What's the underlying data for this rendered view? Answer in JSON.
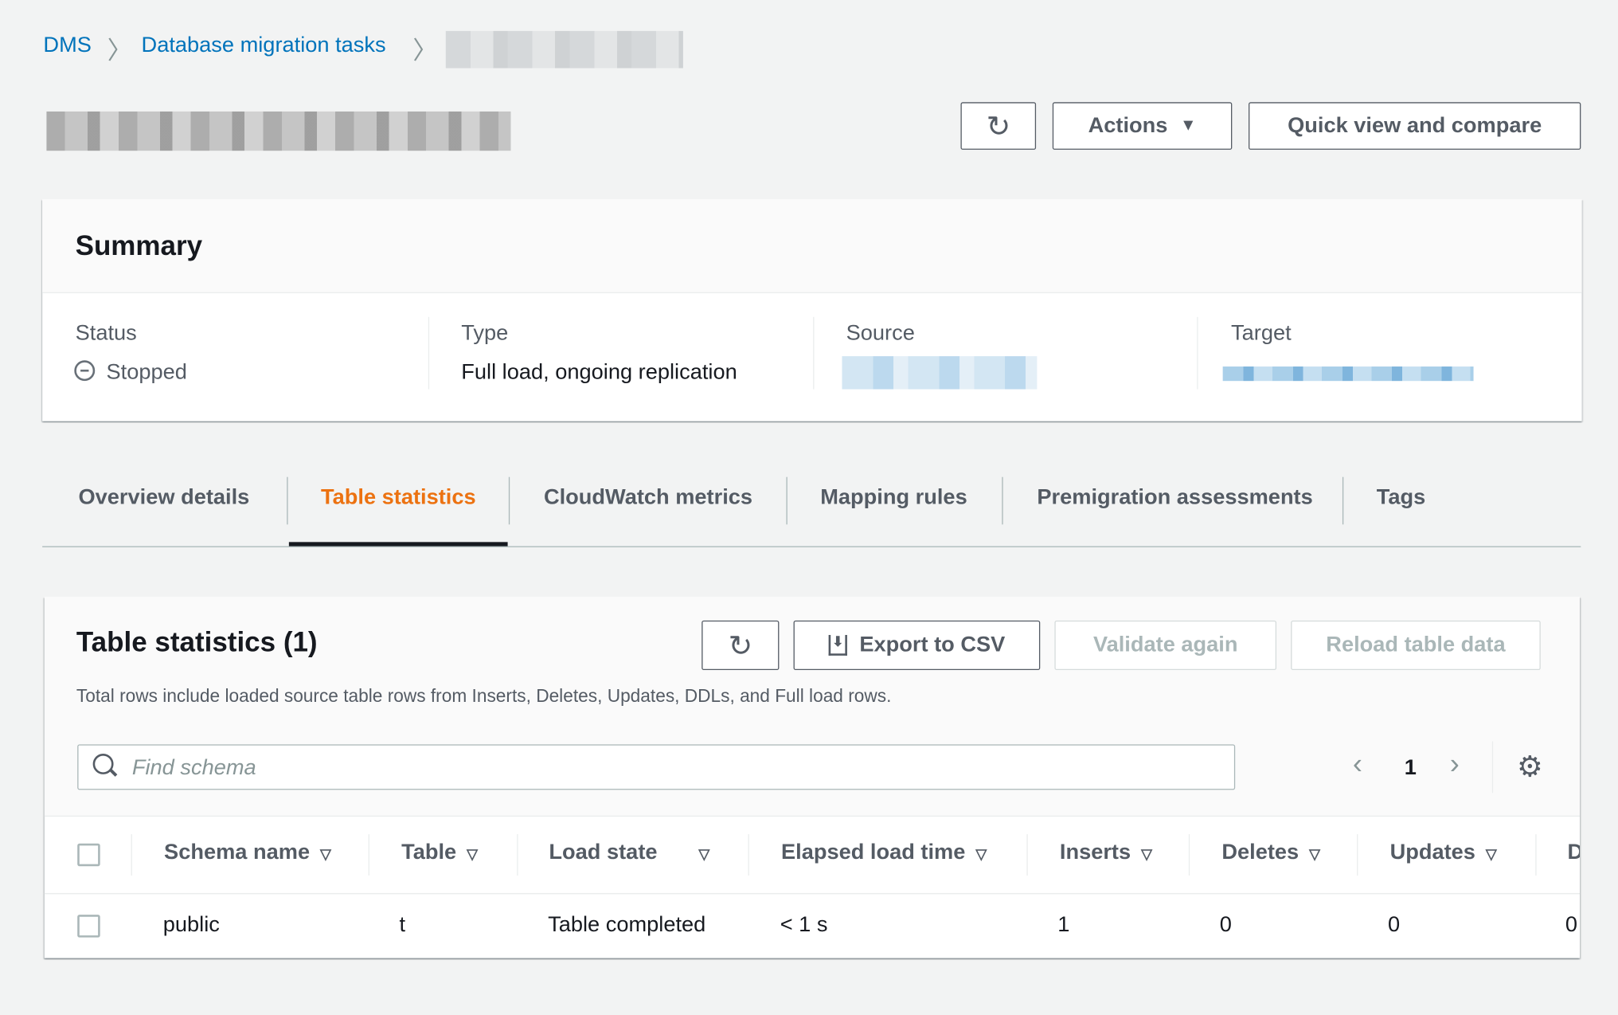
{
  "breadcrumb": {
    "items": [
      "DMS",
      "Database migration tasks"
    ]
  },
  "header": {
    "actions_label": "Actions",
    "quick_view_label": "Quick view and compare"
  },
  "summary": {
    "title": "Summary",
    "status_label": "Status",
    "status_value": "Stopped",
    "type_label": "Type",
    "type_value": "Full load, ongoing replication",
    "source_label": "Source",
    "target_label": "Target"
  },
  "tabs": [
    {
      "label": "Overview details",
      "active": false
    },
    {
      "label": "Table statistics",
      "active": true
    },
    {
      "label": "CloudWatch metrics",
      "active": false
    },
    {
      "label": "Mapping rules",
      "active": false
    },
    {
      "label": "Premigration assessments",
      "active": false
    },
    {
      "label": "Tags",
      "active": false
    }
  ],
  "table_stats": {
    "title": "Table statistics (1)",
    "export_label": "Export to CSV",
    "validate_label": "Validate again",
    "reload_label": "Reload table data",
    "description": "Total rows include loaded source table rows from Inserts, Deletes, Updates, DDLs, and Full load rows.",
    "search_placeholder": "Find schema",
    "page": "1",
    "columns": [
      "Schema name",
      "Table",
      "Load state",
      "Elapsed load time",
      "Inserts",
      "Deletes",
      "Updates",
      "D"
    ],
    "rows": [
      [
        "public",
        "t",
        "Table completed",
        "< 1 s",
        "1",
        "0",
        "0",
        "0"
      ]
    ]
  },
  "colors": {
    "link": "#0073bb",
    "active_tab": "#ec7211",
    "text": "#16191f"
  }
}
